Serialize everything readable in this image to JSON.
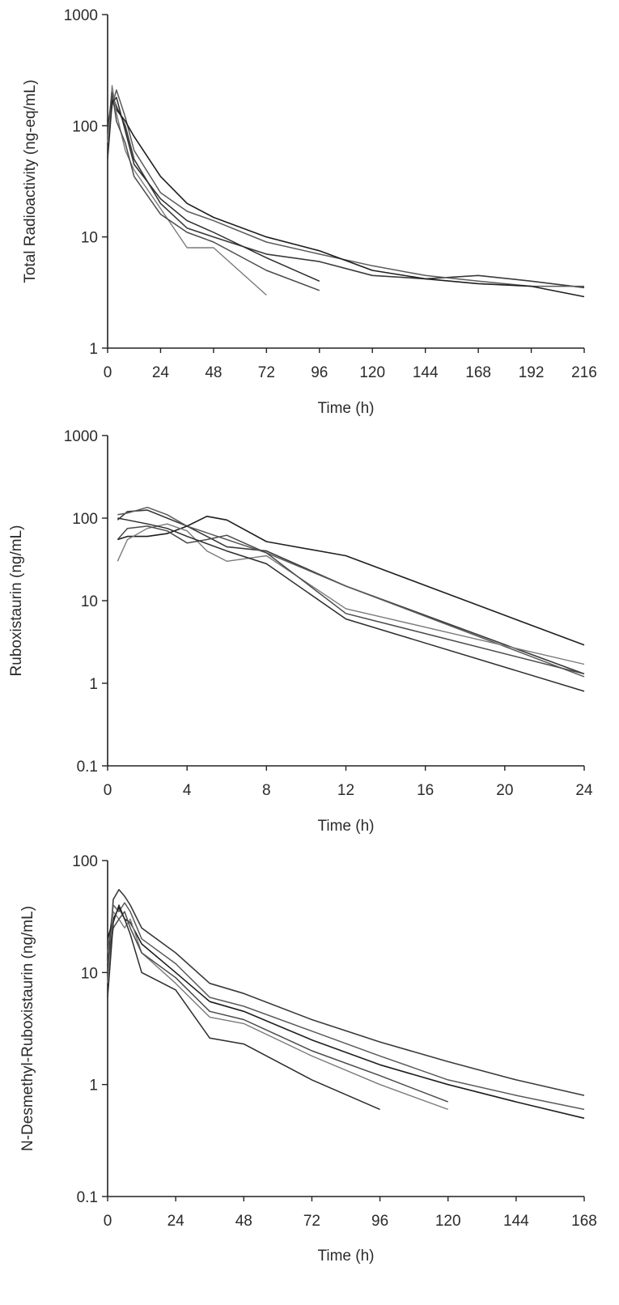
{
  "chart_data": [
    {
      "type": "line",
      "title": "",
      "xlabel": "Time (h)",
      "ylabel": "Total Radioactivity (ng-eq/mL)",
      "yscale": "log",
      "xlim": [
        0,
        216
      ],
      "ylim": [
        1,
        1000
      ],
      "xticks": [
        0,
        24,
        48,
        72,
        96,
        120,
        144,
        168,
        192,
        216
      ],
      "yticks": [
        1,
        10,
        100,
        1000
      ],
      "ytick_labels": [
        "1",
        "10",
        "100",
        "1000"
      ],
      "grid": false,
      "line_color": "#3a3a3a",
      "series": [
        {
          "x": [
            0,
            2,
            4,
            8,
            12,
            24,
            36,
            48,
            72,
            96,
            120,
            144,
            168,
            192,
            216
          ],
          "y": [
            60,
            190,
            150,
            100,
            50,
            20,
            12,
            10,
            7,
            6,
            4.5,
            4.2,
            4.5,
            4.0,
            3.5
          ]
        },
        {
          "x": [
            0,
            2,
            4,
            8,
            12,
            24,
            36,
            48,
            72,
            96,
            120,
            144,
            168,
            192,
            216
          ],
          "y": [
            80,
            150,
            210,
            120,
            60,
            25,
            17,
            14,
            9,
            7,
            5.5,
            4.5,
            4.0,
            3.6,
            3.6
          ]
        },
        {
          "x": [
            0,
            2,
            4,
            8,
            12,
            24,
            36,
            48,
            72,
            96,
            120,
            144,
            168,
            192,
            216
          ],
          "y": [
            100,
            170,
            140,
            110,
            80,
            35,
            20,
            15,
            10,
            7.5,
            5.0,
            4.2,
            3.8,
            3.6,
            2.9
          ]
        },
        {
          "x": [
            0,
            2,
            4,
            8,
            12,
            24,
            36,
            48,
            72
          ],
          "y": [
            70,
            230,
            130,
            60,
            40,
            18,
            8,
            8,
            3
          ]
        },
        {
          "x": [
            0,
            2,
            4,
            8,
            12,
            24,
            36,
            48,
            72,
            96
          ],
          "y": [
            90,
            200,
            110,
            70,
            35,
            16,
            11,
            9,
            5,
            3.3
          ]
        },
        {
          "x": [
            0,
            2,
            4,
            8,
            12,
            24,
            36,
            48,
            72,
            96
          ],
          "y": [
            50,
            160,
            180,
            90,
            45,
            22,
            14,
            11,
            6.5,
            4.0
          ]
        }
      ]
    },
    {
      "type": "line",
      "title": "",
      "xlabel": "Time (h)",
      "ylabel": "Ruboxistaurin (ng/mL)",
      "yscale": "log",
      "xlim": [
        0,
        24
      ],
      "ylim": [
        0.1,
        1000
      ],
      "xticks": [
        0,
        4,
        8,
        12,
        16,
        20,
        24
      ],
      "yticks": [
        0.1,
        1,
        10,
        100,
        1000
      ],
      "ytick_labels": [
        "0.1",
        "1",
        "10",
        "100",
        "1000"
      ],
      "grid": false,
      "line_color": "#3a3a3a",
      "series": [
        {
          "x": [
            0.5,
            1,
            2,
            3,
            4,
            5,
            6,
            8,
            12,
            24
          ],
          "y": [
            95,
            120,
            125,
            100,
            80,
            60,
            45,
            40,
            15,
            1.3
          ]
        },
        {
          "x": [
            0.5,
            1,
            2,
            3,
            4,
            6,
            8,
            12,
            24
          ],
          "y": [
            110,
            115,
            135,
            110,
            80,
            55,
            38,
            15,
            1.2
          ]
        },
        {
          "x": [
            0.5,
            1,
            2,
            3,
            4,
            5,
            6,
            8,
            12,
            24
          ],
          "y": [
            55,
            60,
            60,
            65,
            80,
            105,
            95,
            52,
            35,
            2.9
          ]
        },
        {
          "x": [
            0.5,
            1,
            2,
            3,
            4,
            5,
            6,
            8,
            12,
            24
          ],
          "y": [
            30,
            55,
            75,
            85,
            70,
            40,
            30,
            35,
            8,
            1.7
          ]
        },
        {
          "x": [
            0.5,
            1,
            2,
            3,
            4,
            5,
            6,
            8,
            12,
            24
          ],
          "y": [
            55,
            75,
            80,
            70,
            50,
            55,
            62,
            38,
            7,
            1.3
          ]
        },
        {
          "x": [
            0.5,
            1,
            2,
            3,
            4,
            6,
            8,
            12,
            24
          ],
          "y": [
            100,
            95,
            85,
            75,
            60,
            40,
            28,
            6,
            0.8
          ]
        }
      ]
    },
    {
      "type": "line",
      "title": "",
      "xlabel": "Time (h)",
      "ylabel": "N-Desmethyl-Ruboxistaurin (ng/mL)",
      "yscale": "log",
      "xlim": [
        0,
        168
      ],
      "ylim": [
        0.1,
        100
      ],
      "xticks": [
        0,
        24,
        48,
        72,
        96,
        120,
        144,
        168
      ],
      "yticks": [
        0.1,
        1,
        10,
        100
      ],
      "ytick_labels": [
        "0.1",
        "1",
        "10",
        "100"
      ],
      "grid": false,
      "line_color": "#3a3a3a",
      "series": [
        {
          "x": [
            0,
            2,
            4,
            6,
            8,
            12,
            24,
            36,
            48,
            72,
            96,
            120,
            144,
            168
          ],
          "y": [
            10,
            45,
            55,
            48,
            40,
            25,
            15,
            8,
            6.5,
            3.8,
            2.4,
            1.6,
            1.1,
            0.8
          ]
        },
        {
          "x": [
            0,
            2,
            4,
            6,
            8,
            12,
            24,
            36,
            48,
            72,
            96,
            120,
            144,
            168
          ],
          "y": [
            15,
            40,
            35,
            42,
            35,
            20,
            12,
            6,
            5,
            3.0,
            1.8,
            1.1,
            0.8,
            0.6
          ]
        },
        {
          "x": [
            0,
            2,
            4,
            6,
            8,
            12,
            24,
            36,
            48,
            72,
            96,
            120,
            144,
            168
          ],
          "y": [
            20,
            30,
            38,
            30,
            28,
            18,
            10,
            5.5,
            4.5,
            2.5,
            1.5,
            1.0,
            0.7,
            0.5
          ]
        },
        {
          "x": [
            0,
            2,
            4,
            6,
            8,
            12,
            24,
            36,
            48,
            72,
            96,
            120
          ],
          "y": [
            8,
            35,
            30,
            25,
            30,
            15,
            8,
            4,
            3.5,
            1.8,
            1.0,
            0.6
          ]
        },
        {
          "x": [
            0,
            2,
            4,
            6,
            8,
            12,
            24,
            36,
            48,
            72,
            96,
            120
          ],
          "y": [
            12,
            25,
            30,
            35,
            25,
            15,
            9,
            4.5,
            3.8,
            2.0,
            1.2,
            0.7
          ]
        },
        {
          "x": [
            0,
            2,
            4,
            6,
            8,
            12,
            24,
            36,
            48,
            72,
            96
          ],
          "y": [
            6,
            28,
            40,
            30,
            22,
            10,
            7,
            2.6,
            2.3,
            1.1,
            0.6
          ]
        }
      ]
    }
  ]
}
